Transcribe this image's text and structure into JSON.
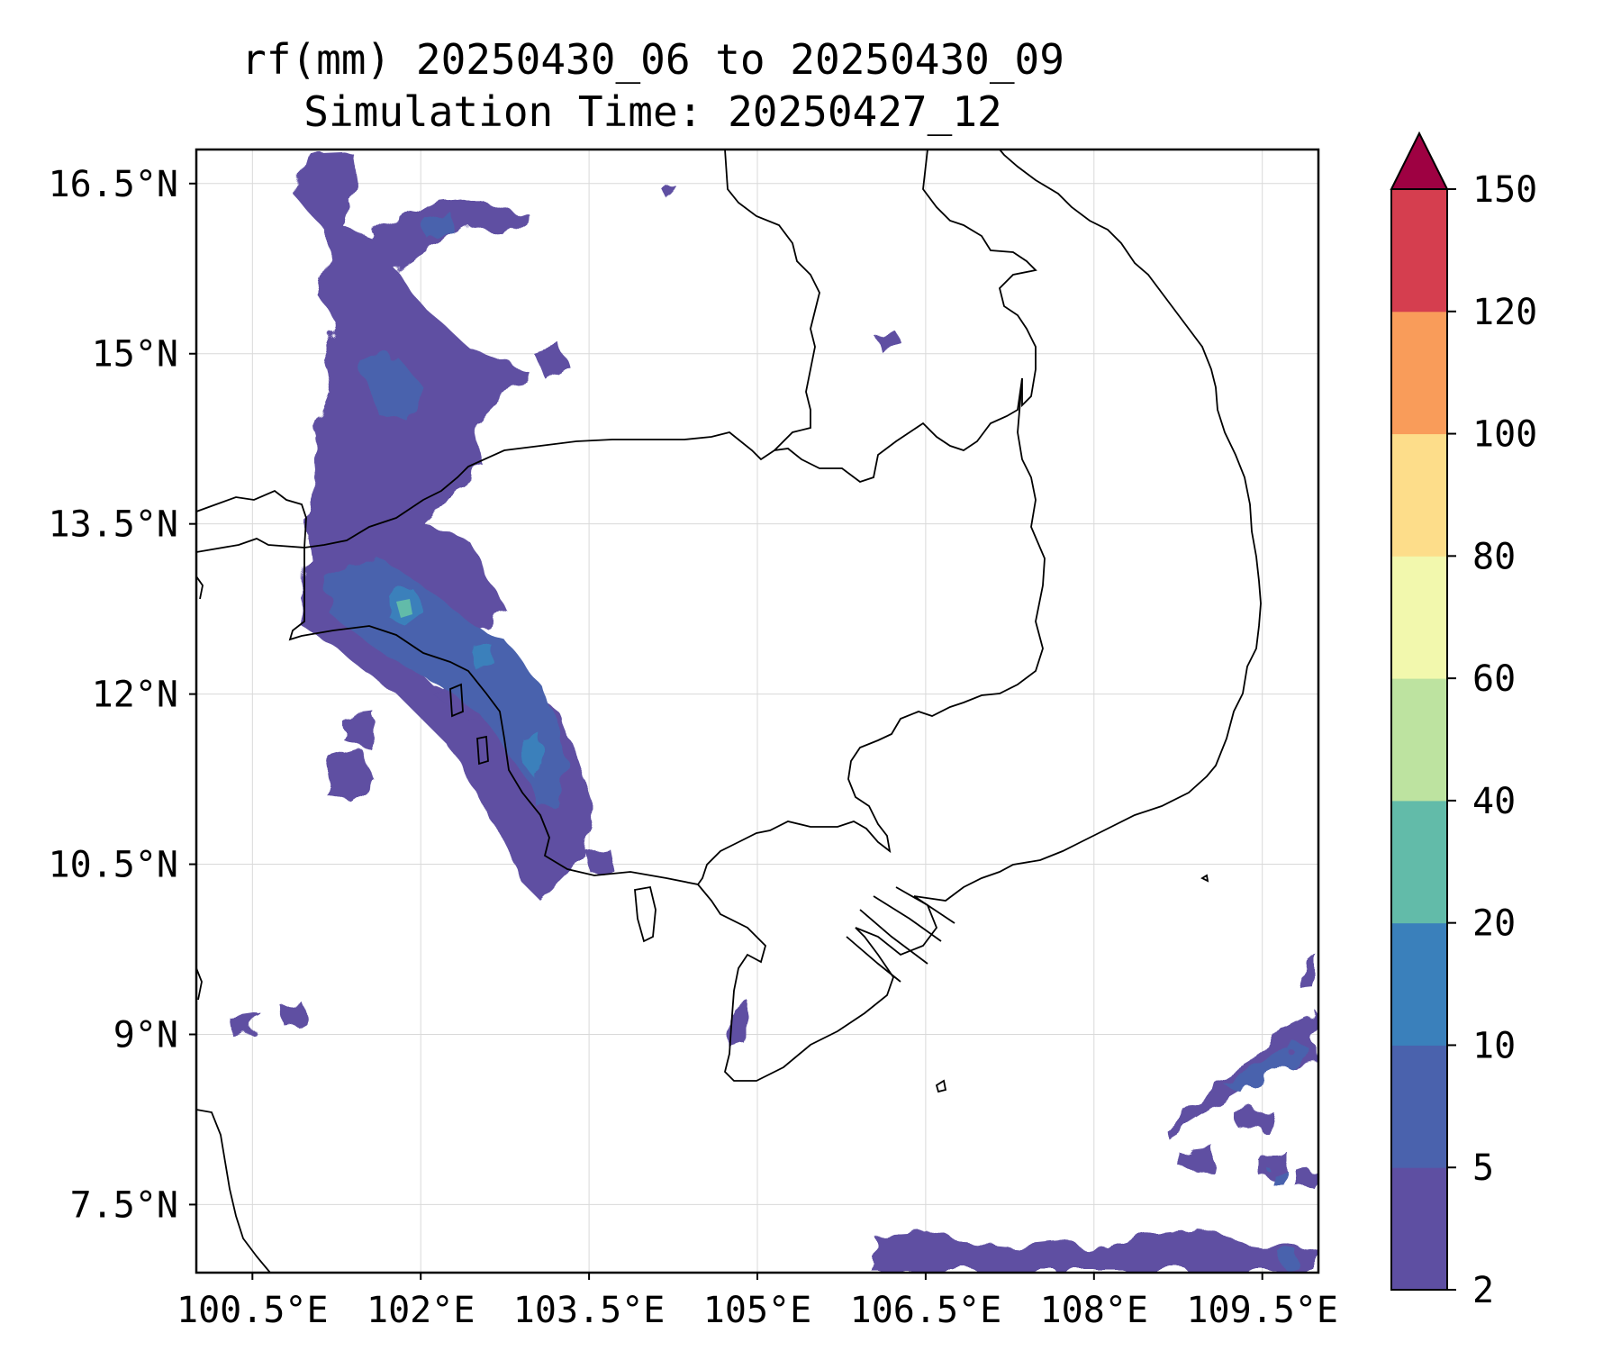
{
  "title": {
    "line1": "rf(mm) 20250430_06 to 20250430_09",
    "line2": "Simulation Time: 20250427_12"
  },
  "map": {
    "lon_range": [
      100.0,
      110.0
    ],
    "lat_range": [
      6.9,
      16.8
    ],
    "lon_ticks": [
      {
        "value": 100.5,
        "label": "100.5°E"
      },
      {
        "value": 102.0,
        "label": "102°E"
      },
      {
        "value": 103.5,
        "label": "103.5°E"
      },
      {
        "value": 105.0,
        "label": "105°E"
      },
      {
        "value": 106.5,
        "label": "106.5°E"
      },
      {
        "value": 108.0,
        "label": "108°E"
      },
      {
        "value": 109.5,
        "label": "109.5°E"
      }
    ],
    "lat_ticks": [
      {
        "value": 16.5,
        "label": "16.5°N"
      },
      {
        "value": 15.0,
        "label": "15°N"
      },
      {
        "value": 13.5,
        "label": "13.5°N"
      },
      {
        "value": 12.0,
        "label": "12°N"
      },
      {
        "value": 10.5,
        "label": "10.5°N"
      },
      {
        "value": 9.0,
        "label": "9°N"
      },
      {
        "value": 7.5,
        "label": "7.5°N"
      }
    ],
    "gridlines": true
  },
  "colorbar": {
    "levels": [
      2,
      5,
      10,
      20,
      40,
      60,
      80,
      100,
      120,
      150
    ],
    "labels": [
      "2",
      "5",
      "10",
      "20",
      "40",
      "60",
      "80",
      "100",
      "120",
      "150"
    ],
    "colors": [
      "#5e4fa2",
      "#4a62ad",
      "#3a80bb",
      "#62bba9",
      "#bde3a0",
      "#f2f8ad",
      "#fddd8a",
      "#f99c5a",
      "#d53e4f"
    ],
    "extend_color": "#9e0142",
    "extend": "max"
  },
  "rain_cells": [
    {
      "lon": 101.5,
      "lat": 16.1,
      "r": 0.35,
      "level": 0
    },
    {
      "lon": 101.8,
      "lat": 15.6,
      "r": 0.3,
      "level": 0
    },
    {
      "lon": 102.0,
      "lat": 14.6,
      "r": 0.35,
      "level": 0
    },
    {
      "lon": 101.7,
      "lat": 14.0,
      "r": 0.3,
      "level": 0
    },
    {
      "lon": 101.6,
      "lat": 13.0,
      "r": 0.45,
      "level": 1
    },
    {
      "lon": 102.0,
      "lat": 12.9,
      "r": 0.35,
      "level": 2
    },
    {
      "lon": 102.5,
      "lat": 12.6,
      "r": 0.35,
      "level": 1
    },
    {
      "lon": 102.9,
      "lat": 12.2,
      "r": 0.35,
      "level": 1
    },
    {
      "lon": 103.2,
      "lat": 11.7,
      "r": 0.35,
      "level": 1
    },
    {
      "lon": 103.2,
      "lat": 11.4,
      "r": 0.25,
      "level": 2
    },
    {
      "lon": 101.4,
      "lat": 11.5,
      "r": 0.25,
      "level": 0
    },
    {
      "lon": 104.9,
      "lat": 9.2,
      "r": 0.15,
      "level": 0
    },
    {
      "lon": 109.0,
      "lat": 8.6,
      "r": 0.35,
      "level": 0
    },
    {
      "lon": 109.6,
      "lat": 8.9,
      "r": 0.25,
      "level": 1
    },
    {
      "lon": 106.8,
      "lat": 7.1,
      "r": 0.25,
      "level": 0
    },
    {
      "lon": 108.8,
      "lat": 7.1,
      "r": 0.2,
      "level": 0
    }
  ]
}
